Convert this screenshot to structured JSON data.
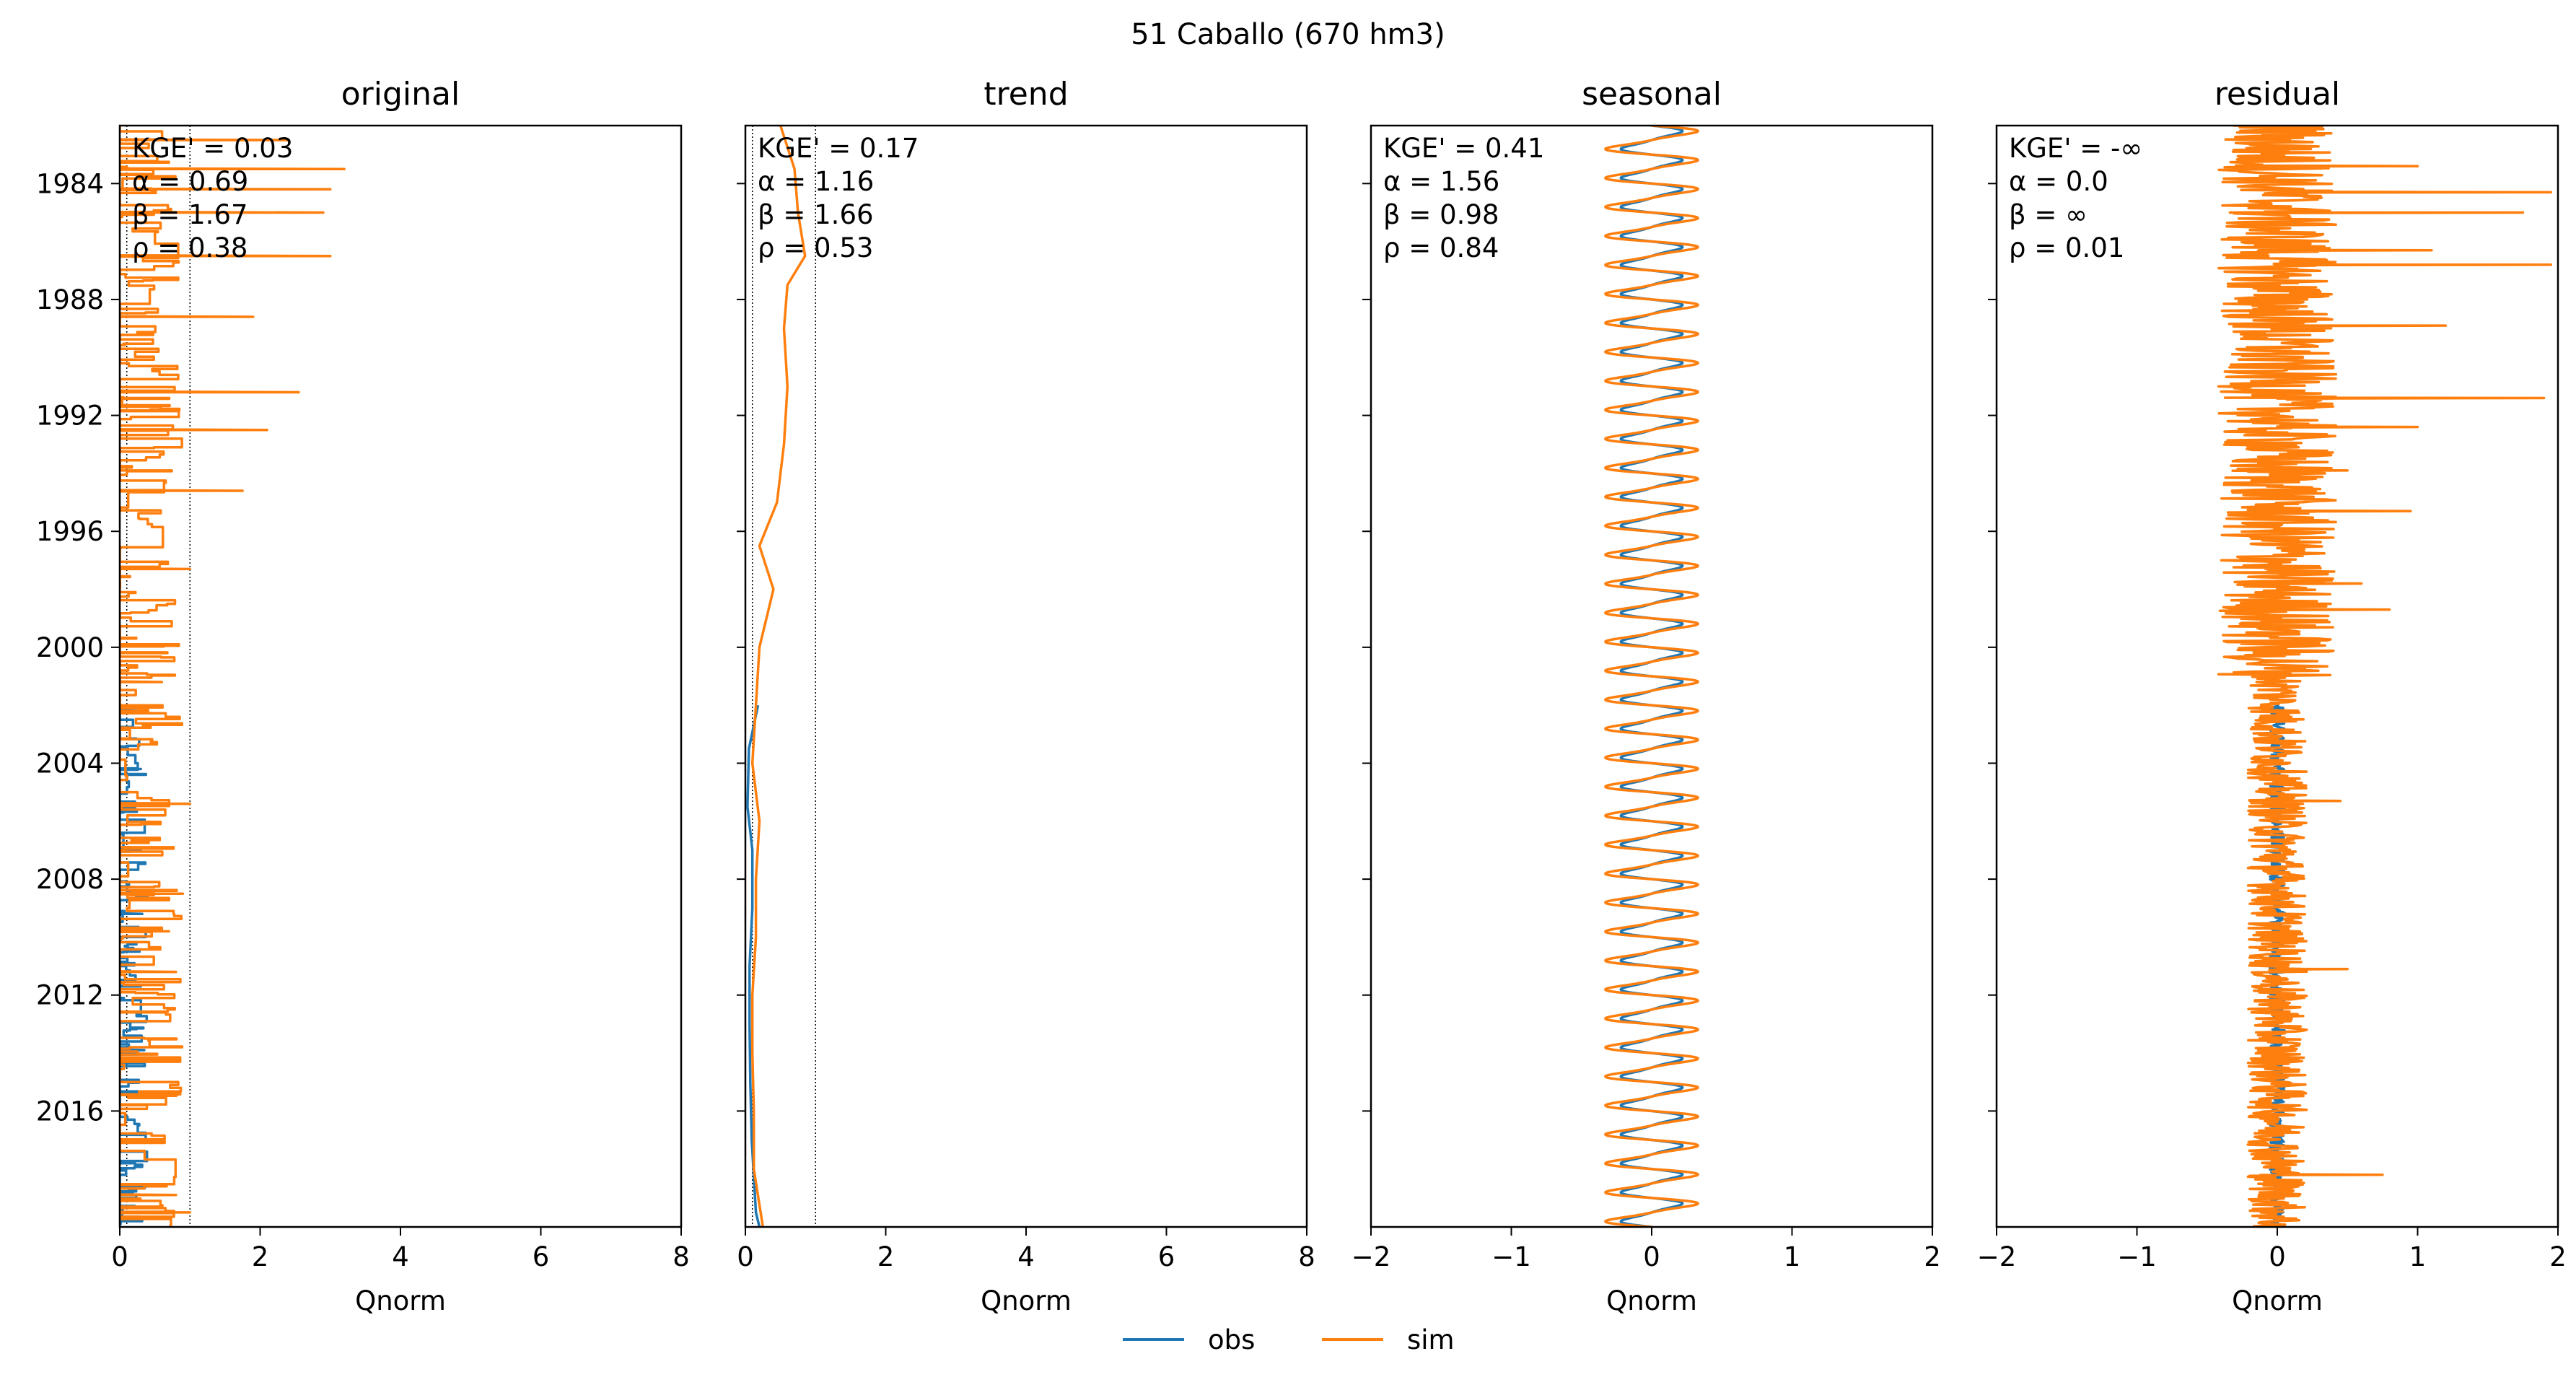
{
  "figure_title": "51  Caballo (670 hm3)",
  "legend": {
    "obs_label": "obs",
    "sim_label": "sim"
  },
  "colors": {
    "obs": "#1f77b4",
    "sim": "#ff7f0e",
    "axis": "#000000",
    "guide": "#000000"
  },
  "chart_data": [
    {
      "type": "line",
      "panel": "original",
      "title": "original",
      "xlabel": "Qnorm",
      "xlim": [
        0,
        8
      ],
      "ylim": [
        1982.0,
        2020.0
      ],
      "xticks": [
        "0",
        "2",
        "4",
        "6",
        "8"
      ],
      "yticks": [
        "1984",
        "1988",
        "1992",
        "1996",
        "2000",
        "2004",
        "2008",
        "2012",
        "2016"
      ],
      "guides_x": [
        0.1,
        1.0
      ],
      "metrics": [
        "KGE' = 0.03",
        "α = 0.69",
        "β = 1.67",
        "ρ = 0.38"
      ],
      "series": [
        {
          "name": "obs",
          "y_range": [
            2002.0,
            2020.0
          ],
          "value_range": [
            0.0,
            0.4
          ],
          "peaks": [
            [
              2002.2,
              0.35
            ],
            [
              2004.2,
              0.3
            ],
            [
              2007.0,
              0.3
            ],
            [
              2009.2,
              0.32
            ],
            [
              2011.7,
              0.3
            ],
            [
              2013.9,
              0.35
            ],
            [
              2016.8,
              0.3
            ],
            [
              2018.6,
              0.35
            ],
            [
              2019.5,
              0.4
            ]
          ]
        },
        {
          "name": "sim",
          "y_range": [
            1982.0,
            2020.0
          ],
          "value_range": [
            0.0,
            3.2
          ],
          "peaks": [
            [
              1982.5,
              2.4
            ],
            [
              1983.5,
              3.2
            ],
            [
              1984.2,
              3.0
            ],
            [
              1985.0,
              2.9
            ],
            [
              1986.5,
              3.0
            ],
            [
              1988.6,
              1.9
            ],
            [
              1991.2,
              2.55
            ],
            [
              1992.5,
              2.1
            ],
            [
              1994.6,
              1.75
            ],
            [
              1997.3,
              1.0
            ],
            [
              2001.2,
              0.6
            ],
            [
              2005.4,
              1.0
            ],
            [
              2008.5,
              0.9
            ],
            [
              2009.8,
              0.7
            ],
            [
              2011.2,
              0.8
            ],
            [
              2014.2,
              0.3
            ],
            [
              2017.0,
              0.5
            ],
            [
              2018.9,
              0.8
            ],
            [
              2019.5,
              1.0
            ]
          ]
        }
      ]
    },
    {
      "type": "line",
      "panel": "trend",
      "title": "trend",
      "xlabel": "Qnorm",
      "xlim": [
        0,
        8
      ],
      "ylim": [
        1982.0,
        2020.0
      ],
      "xticks": [
        "0",
        "2",
        "4",
        "6",
        "8"
      ],
      "guides_x": [
        0.1,
        1.0
      ],
      "metrics": [
        "KGE' = 0.17",
        "α = 1.16",
        "β = 1.66",
        "ρ = 0.53"
      ],
      "series": [
        {
          "name": "obs",
          "y_range": [
            2002.0,
            2020.0
          ],
          "points": [
            [
              2002.0,
              0.18
            ],
            [
              2003.5,
              0.05
            ],
            [
              2005.5,
              0.03
            ],
            [
              2007.0,
              0.1
            ],
            [
              2009.0,
              0.1
            ],
            [
              2011.0,
              0.06
            ],
            [
              2013.0,
              0.06
            ],
            [
              2015.0,
              0.07
            ],
            [
              2017.0,
              0.09
            ],
            [
              2019.5,
              0.15
            ],
            [
              2020.0,
              0.2
            ]
          ]
        },
        {
          "name": "sim",
          "y_range": [
            1982.0,
            2020.0
          ],
          "points": [
            [
              1982.0,
              0.5
            ],
            [
              1983.5,
              0.7
            ],
            [
              1985.0,
              0.75
            ],
            [
              1986.5,
              0.85
            ],
            [
              1987.5,
              0.6
            ],
            [
              1989.0,
              0.55
            ],
            [
              1991.0,
              0.6
            ],
            [
              1993.0,
              0.55
            ],
            [
              1995.0,
              0.45
            ],
            [
              1996.5,
              0.2
            ],
            [
              1998.0,
              0.4
            ],
            [
              2000.0,
              0.2
            ],
            [
              2002.0,
              0.15
            ],
            [
              2004.0,
              0.1
            ],
            [
              2006.0,
              0.2
            ],
            [
              2008.0,
              0.15
            ],
            [
              2010.0,
              0.15
            ],
            [
              2012.0,
              0.1
            ],
            [
              2014.0,
              0.1
            ],
            [
              2016.0,
              0.12
            ],
            [
              2018.0,
              0.12
            ],
            [
              2020.0,
              0.25
            ]
          ]
        }
      ]
    },
    {
      "type": "line",
      "panel": "seasonal",
      "title": "seasonal",
      "xlabel": "Qnorm",
      "xlim": [
        -2,
        2
      ],
      "ylim": [
        1982.0,
        2020.0
      ],
      "xticks": [
        "−2",
        "−1",
        "0",
        "1",
        "2"
      ],
      "metrics": [
        "KGE' = 0.41",
        "α = 1.56",
        "β = 0.98",
        "ρ = 0.84"
      ],
      "series": [
        {
          "name": "obs",
          "y_range": [
            1982.0,
            2020.0
          ],
          "amplitude": 0.2,
          "period_years": 1.0
        },
        {
          "name": "sim",
          "y_range": [
            1982.0,
            2020.0
          ],
          "amplitude": 0.3,
          "period_years": 1.0
        }
      ]
    },
    {
      "type": "line",
      "panel": "residual",
      "title": "residual",
      "xlabel": "Qnorm",
      "xlim": [
        -2,
        2
      ],
      "ylim": [
        1982.0,
        2020.0
      ],
      "xticks": [
        "−2",
        "−1",
        "0",
        "1",
        "2"
      ],
      "metrics": [
        "KGE' = -∞",
        "α = 0.0",
        "β = ∞",
        "ρ = 0.01"
      ],
      "series": [
        {
          "name": "obs",
          "y_range": [
            2002.0,
            2020.0
          ],
          "value_range": [
            -0.15,
            0.15
          ]
        },
        {
          "name": "sim",
          "y_range": [
            1982.0,
            2020.0
          ],
          "value_range": [
            -0.6,
            1.95
          ],
          "peaks": [
            [
              1983.4,
              1.0
            ],
            [
              1984.3,
              1.95
            ],
            [
              1985.0,
              1.75
            ],
            [
              1986.3,
              1.1
            ],
            [
              1986.8,
              1.95
            ],
            [
              1988.9,
              1.2
            ],
            [
              1991.4,
              1.9
            ],
            [
              1992.4,
              1.0
            ],
            [
              1993.9,
              0.5
            ],
            [
              1995.3,
              0.95
            ],
            [
              1997.8,
              0.6
            ],
            [
              1998.7,
              0.8
            ],
            [
              2005.3,
              0.45
            ],
            [
              2011.1,
              0.5
            ],
            [
              2018.2,
              0.75
            ]
          ]
        }
      ]
    }
  ]
}
